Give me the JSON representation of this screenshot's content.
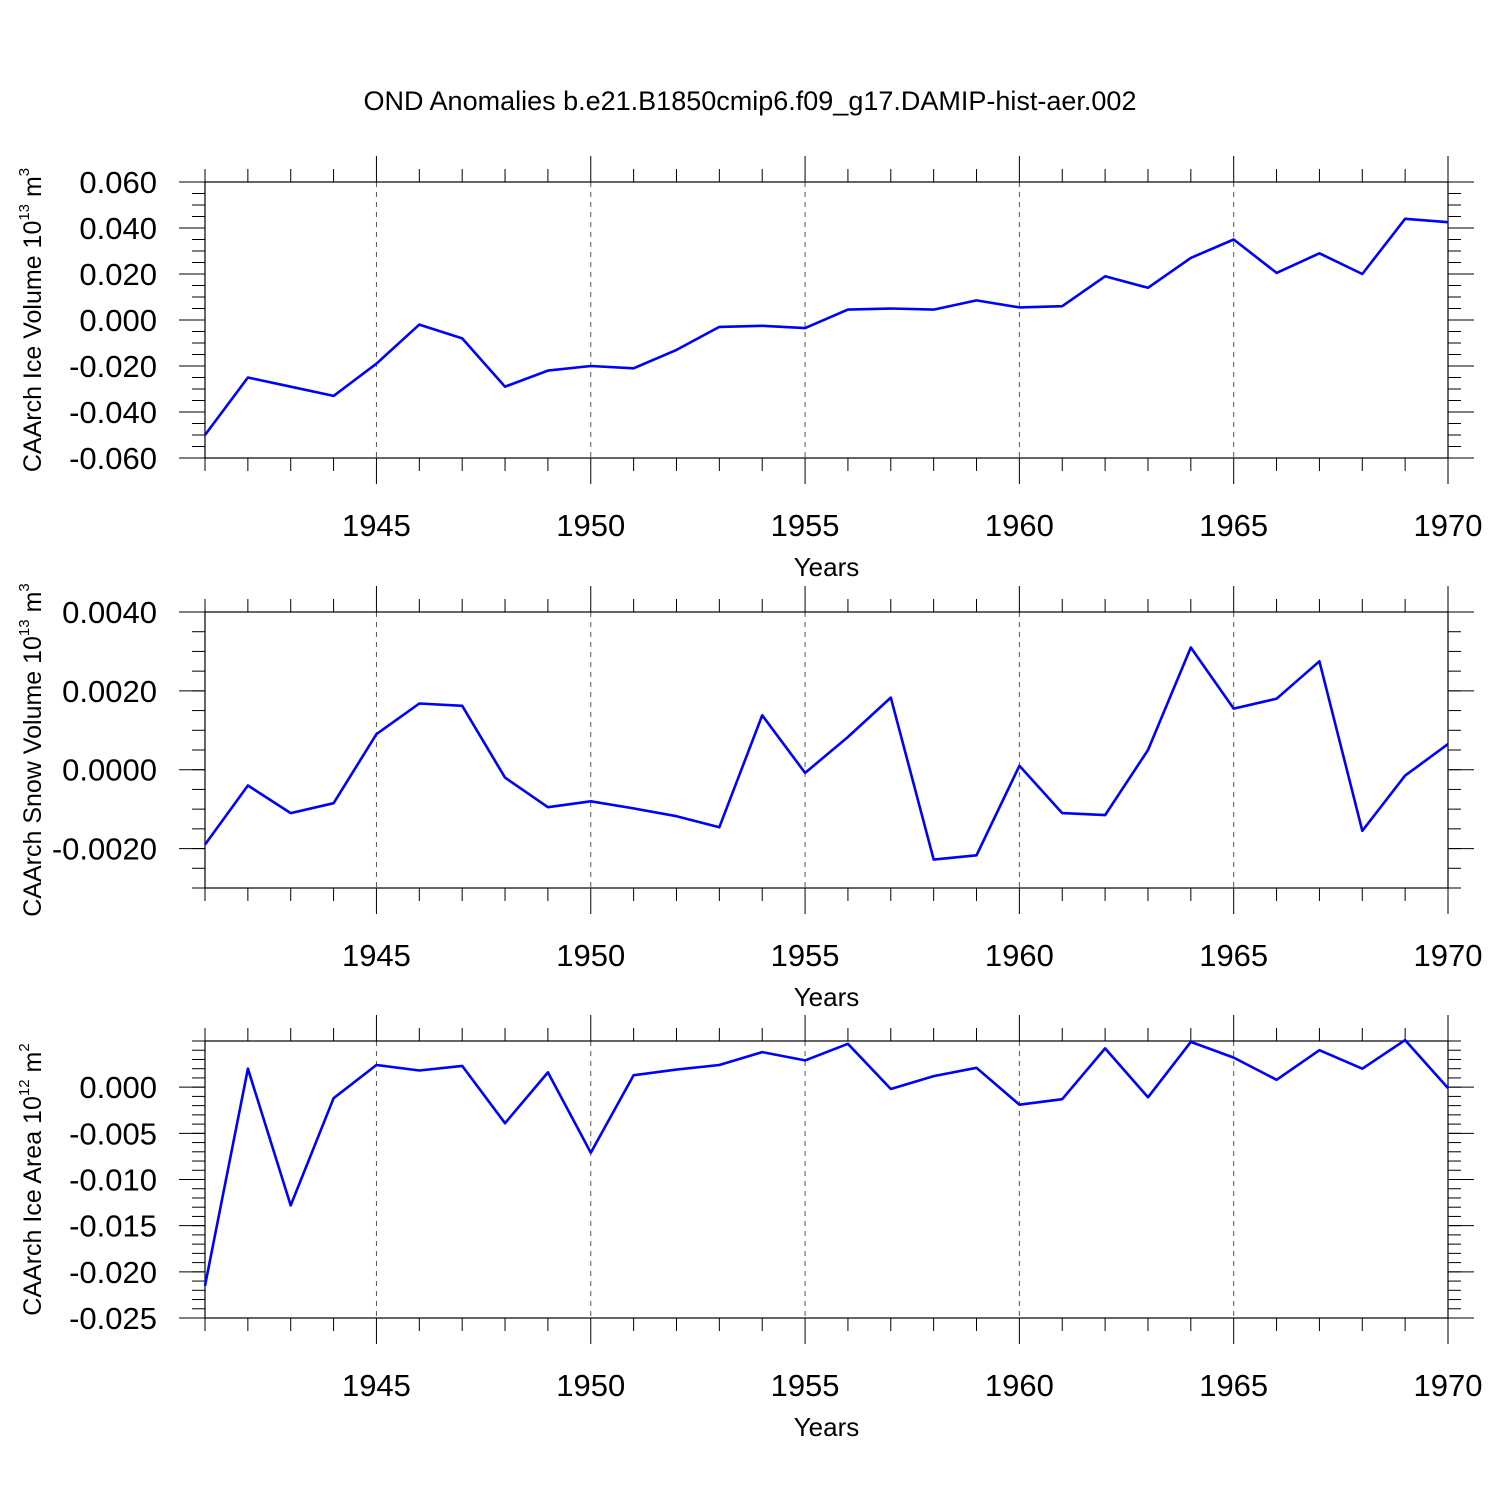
{
  "chart_data": {
    "title": "OND Anomalies b.e21.B1850cmip6.f09_g17.DAMIP-hist-aer.002",
    "type": "line",
    "series_color": "#0000ff",
    "panels": [
      {
        "type": "line",
        "ylabel": "CAArch Ice Volume 10",
        "ylabel_exp": "13",
        "ylabel_unit": " m",
        "ylabel_unit_exp": "3",
        "xlabel": "Years",
        "xlim": [
          1941,
          1970
        ],
        "ylim": [
          -0.06,
          0.06
        ],
        "yticks": [
          -0.06,
          -0.04,
          -0.02,
          0.0,
          0.02,
          0.04,
          0.06
        ],
        "ytick_labels": [
          "-0.060",
          "-0.040",
          "-0.020",
          "0.000",
          "0.020",
          "0.040",
          "0.060"
        ],
        "yminor": 0.005,
        "xticks": [
          1945,
          1950,
          1955,
          1960,
          1965,
          1970
        ],
        "xtick_labels": [
          "1945",
          "1950",
          "1955",
          "1960",
          "1965",
          "1970"
        ],
        "grid": "dashed vertical at major x ticks",
        "x": [
          1941,
          1942,
          1943,
          1944,
          1945,
          1946,
          1947,
          1948,
          1949,
          1950,
          1951,
          1952,
          1953,
          1954,
          1955,
          1956,
          1957,
          1958,
          1959,
          1960,
          1961,
          1962,
          1963,
          1964,
          1965,
          1966,
          1967,
          1968,
          1969,
          1970
        ],
        "values": [
          -0.05,
          -0.025,
          -0.029,
          -0.033,
          -0.019,
          -0.002,
          -0.008,
          -0.029,
          -0.022,
          -0.02,
          -0.021,
          -0.013,
          -0.003,
          -0.0025,
          -0.0035,
          0.0045,
          0.005,
          0.0045,
          0.0085,
          0.0055,
          0.006,
          0.019,
          0.014,
          0.027,
          0.035,
          0.0205,
          0.029,
          0.02,
          0.044,
          0.0425
        ]
      },
      {
        "type": "line",
        "ylabel": "CAArch Snow Volume 10",
        "ylabel_exp": "13",
        "ylabel_unit": " m",
        "ylabel_unit_exp": "3",
        "xlabel": "Years",
        "xlim": [
          1941,
          1970
        ],
        "ylim": [
          -0.003,
          0.004
        ],
        "yticks": [
          -0.002,
          0.0,
          0.002,
          0.004
        ],
        "ytick_labels": [
          "-0.0020",
          "0.0000",
          "0.0020",
          "0.0040"
        ],
        "yminor": 0.0005,
        "xticks": [
          1945,
          1950,
          1955,
          1960,
          1965,
          1970
        ],
        "xtick_labels": [
          "1945",
          "1950",
          "1955",
          "1960",
          "1965",
          "1970"
        ],
        "grid": "dashed vertical at major x ticks",
        "x": [
          1941,
          1942,
          1943,
          1944,
          1945,
          1946,
          1947,
          1948,
          1949,
          1950,
          1951,
          1952,
          1953,
          1954,
          1955,
          1956,
          1957,
          1958,
          1959,
          1960,
          1961,
          1962,
          1963,
          1964,
          1965,
          1966,
          1967,
          1968,
          1969,
          1970
        ],
        "values": [
          -0.0019,
          -0.0004,
          -0.0011,
          -0.00085,
          0.0009,
          0.00168,
          0.00162,
          -0.0002,
          -0.00095,
          -0.0008,
          -0.00098,
          -0.00118,
          -0.00146,
          0.00138,
          -8e-05,
          0.00083,
          0.00183,
          -0.00228,
          -0.00217,
          0.0001,
          -0.0011,
          -0.00115,
          0.0005,
          0.0031,
          0.00155,
          0.0018,
          0.00275,
          -0.00155,
          -0.00015,
          0.00065
        ]
      },
      {
        "type": "line",
        "ylabel": "CAArch Ice Area 10",
        "ylabel_exp": "12",
        "ylabel_unit": " m",
        "ylabel_unit_exp": "2",
        "xlabel": "Years",
        "xlim": [
          1941,
          1970
        ],
        "ylim": [
          -0.025,
          0.005
        ],
        "yticks": [
          -0.025,
          -0.02,
          -0.015,
          -0.01,
          -0.005,
          0.0
        ],
        "ytick_labels": [
          "-0.025",
          "-0.020",
          "-0.015",
          "-0.010",
          "-0.005",
          "0.000"
        ],
        "yminor": 0.001,
        "xticks": [
          1945,
          1950,
          1955,
          1960,
          1965,
          1970
        ],
        "xtick_labels": [
          "1945",
          "1950",
          "1955",
          "1960",
          "1965",
          "1970"
        ],
        "grid": "dashed vertical at major x ticks",
        "x": [
          1941,
          1942,
          1943,
          1944,
          1945,
          1946,
          1947,
          1948,
          1949,
          1950,
          1951,
          1952,
          1953,
          1954,
          1955,
          1956,
          1957,
          1958,
          1959,
          1960,
          1961,
          1962,
          1963,
          1964,
          1965,
          1966,
          1967,
          1968,
          1969,
          1970
        ],
        "values": [
          -0.0215,
          0.002,
          -0.0128,
          -0.0012,
          0.0024,
          0.0018,
          0.0023,
          -0.0039,
          0.0016,
          -0.0071,
          0.0013,
          0.0019,
          0.0024,
          0.0038,
          0.0029,
          0.0047,
          -0.0002,
          0.0012,
          0.0021,
          -0.0019,
          -0.0013,
          0.0042,
          -0.0011,
          0.0049,
          0.0032,
          0.0008,
          0.004,
          0.002,
          0.0051,
          -0.0001
        ]
      }
    ]
  }
}
